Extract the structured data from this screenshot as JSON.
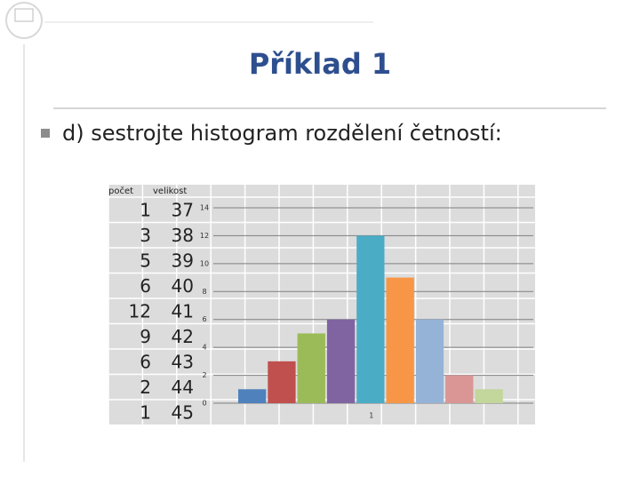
{
  "slide": {
    "title": "Příklad 1",
    "bullet": "d) sestrojte histogram rozdělení četností:"
  },
  "table": {
    "header": [
      "počet",
      "velikost"
    ],
    "rows": [
      [
        1,
        37
      ],
      [
        3,
        38
      ],
      [
        5,
        39
      ],
      [
        6,
        40
      ],
      [
        12,
        41
      ],
      [
        9,
        42
      ],
      [
        6,
        43
      ],
      [
        2,
        44
      ],
      [
        1,
        45
      ]
    ]
  },
  "chart_data": {
    "type": "bar",
    "categories": [
      "1"
    ],
    "series": [
      {
        "color": "#4f81bd",
        "values": [
          1
        ]
      },
      {
        "color": "#c0504d",
        "values": [
          3
        ]
      },
      {
        "color": "#9bbb59",
        "values": [
          5
        ]
      },
      {
        "color": "#8064a2",
        "values": [
          6
        ]
      },
      {
        "color": "#4bacc6",
        "values": [
          12
        ]
      },
      {
        "color": "#f79646",
        "values": [
          9
        ]
      },
      {
        "color": "#95b3d7",
        "values": [
          6
        ]
      },
      {
        "color": "#d99694",
        "values": [
          2
        ]
      },
      {
        "color": "#c3d69b",
        "values": [
          1
        ]
      }
    ],
    "ylim": [
      0,
      14
    ],
    "yticks": [
      0,
      2,
      4,
      6,
      8,
      10,
      12,
      14
    ],
    "grid": true
  }
}
